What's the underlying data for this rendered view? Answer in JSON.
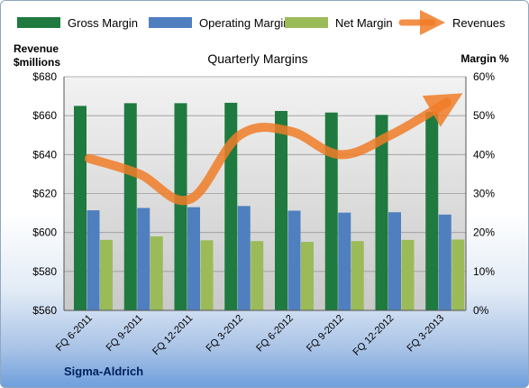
{
  "chart_data": {
    "type": "bar",
    "title": "Quarterly Margins",
    "categories": [
      "FQ 6-2011",
      "FQ 9-2011",
      "FQ 12-2011",
      "FQ 3-2012",
      "FQ 6-2012",
      "FQ 9-2012",
      "FQ 12-2012",
      "FQ 3-2013"
    ],
    "series": [
      {
        "name": "Gross Margin",
        "axis": "right",
        "color": "#1f7a3f",
        "values": [
          52.5,
          53.2,
          53.2,
          53.3,
          51.2,
          50.8,
          50.2,
          51.0
        ]
      },
      {
        "name": "Operating Margin",
        "axis": "right",
        "color": "#4f7fbf",
        "values": [
          25.7,
          26.3,
          26.5,
          26.8,
          25.6,
          25.1,
          25.2,
          24.6
        ]
      },
      {
        "name": "Net Margin",
        "axis": "right",
        "color": "#9bbb59",
        "values": [
          18.1,
          19.0,
          18.0,
          17.8,
          17.6,
          17.8,
          18.1,
          18.2
        ]
      }
    ],
    "line_series": {
      "name": "Revenues",
      "axis": "left",
      "color": "#f07c28",
      "values": [
        638,
        630,
        617,
        650,
        652,
        640,
        650,
        665
      ]
    },
    "left_axis": {
      "label_line1": "Revenue",
      "label_line2": "$millions",
      "ylim": [
        560,
        680
      ],
      "ticks": [
        "$560",
        "$580",
        "$600",
        "$620",
        "$640",
        "$660",
        "$680"
      ]
    },
    "right_axis": {
      "label": "Margin %",
      "ylim": [
        0,
        60
      ],
      "ticks": [
        "0%",
        "10%",
        "20%",
        "30%",
        "40%",
        "50%",
        "60%"
      ]
    },
    "legend_position": "top",
    "grid": true,
    "source_label": "Sigma-Aldrich"
  }
}
